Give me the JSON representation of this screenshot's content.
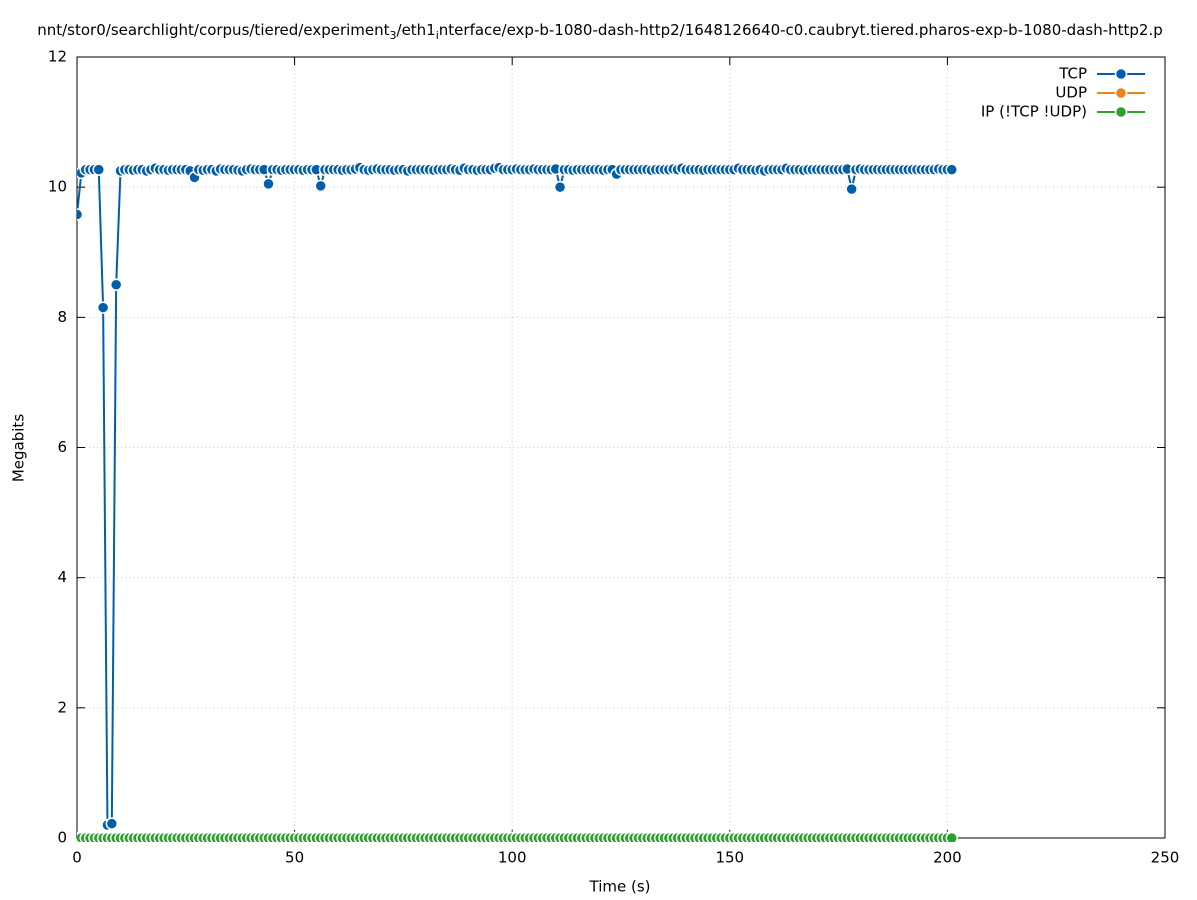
{
  "chart_data": {
    "type": "line",
    "title": [
      "nnt/stor0/searchlight/corpus/tiered/experiment",
      "3",
      "/eth1",
      "i",
      "nterface/exp-b-1080-dash-http2/1648126640-c0.caubryt.tiered.pharos-exp-b-1080-dash-http2.p"
    ],
    "xlabel": "Time (s)",
    "ylabel": "Megabits",
    "xlim": [
      0,
      250
    ],
    "xticks": [
      0,
      50,
      100,
      150,
      200,
      250
    ],
    "ylim": [
      0,
      12
    ],
    "yticks": [
      0,
      2,
      4,
      6,
      8,
      10,
      12
    ],
    "grid": true,
    "legend": "top-right",
    "x": [
      0,
      1,
      2,
      3,
      4,
      5,
      6,
      7,
      8,
      9,
      10,
      11,
      12,
      13,
      14,
      15,
      16,
      17,
      18,
      19,
      20,
      21,
      22,
      23,
      24,
      25,
      26,
      27,
      28,
      29,
      30,
      31,
      32,
      33,
      34,
      35,
      36,
      37,
      38,
      39,
      40,
      41,
      42,
      43,
      44,
      45,
      46,
      47,
      48,
      49,
      50,
      51,
      52,
      53,
      54,
      55,
      56,
      57,
      58,
      59,
      60,
      61,
      62,
      63,
      64,
      65,
      66,
      67,
      68,
      69,
      70,
      71,
      72,
      73,
      74,
      75,
      76,
      77,
      78,
      79,
      80,
      81,
      82,
      83,
      84,
      85,
      86,
      87,
      88,
      89,
      90,
      91,
      92,
      93,
      94,
      95,
      96,
      97,
      98,
      99,
      100,
      101,
      102,
      103,
      104,
      105,
      106,
      107,
      108,
      109,
      110,
      111,
      112,
      113,
      114,
      115,
      116,
      117,
      118,
      119,
      120,
      121,
      122,
      123,
      124,
      125,
      126,
      127,
      128,
      129,
      130,
      131,
      132,
      133,
      134,
      135,
      136,
      137,
      138,
      139,
      140,
      141,
      142,
      143,
      144,
      145,
      146,
      147,
      148,
      149,
      150,
      151,
      152,
      153,
      154,
      155,
      156,
      157,
      158,
      159,
      160,
      161,
      162,
      163,
      164,
      165,
      166,
      167,
      168,
      169,
      170,
      171,
      172,
      173,
      174,
      175,
      176,
      177,
      178,
      179,
      180,
      181,
      182,
      183,
      184,
      185,
      186,
      187,
      188,
      189,
      190,
      191,
      192,
      193,
      194,
      195,
      196,
      197,
      198,
      199,
      200,
      201
    ],
    "series": [
      {
        "name": "TCP",
        "color": "#005eaa",
        "values": [
          9.58,
          10.22,
          10.27,
          10.27,
          10.27,
          10.27,
          8.15,
          0.2,
          0.22,
          8.5,
          10.25,
          10.27,
          10.27,
          10.26,
          10.27,
          10.27,
          10.25,
          10.27,
          10.29,
          10.27,
          10.27,
          10.26,
          10.27,
          10.27,
          10.27,
          10.27,
          10.25,
          10.15,
          10.27,
          10.26,
          10.27,
          10.27,
          10.25,
          10.28,
          10.27,
          10.27,
          10.27,
          10.26,
          10.25,
          10.27,
          10.28,
          10.27,
          10.27,
          10.27,
          10.05,
          10.27,
          10.27,
          10.26,
          10.27,
          10.27,
          10.27,
          10.27,
          10.26,
          10.27,
          10.27,
          10.27,
          10.02,
          10.27,
          10.27,
          10.27,
          10.27,
          10.26,
          10.27,
          10.27,
          10.28,
          10.3,
          10.27,
          10.26,
          10.27,
          10.28,
          10.27,
          10.27,
          10.27,
          10.26,
          10.27,
          10.27,
          10.25,
          10.27,
          10.27,
          10.27,
          10.27,
          10.27,
          10.26,
          10.27,
          10.27,
          10.27,
          10.28,
          10.27,
          10.26,
          10.29,
          10.27,
          10.27,
          10.26,
          10.27,
          10.27,
          10.27,
          10.29,
          10.3,
          10.27,
          10.27,
          10.27,
          10.28,
          10.27,
          10.27,
          10.27,
          10.28,
          10.27,
          10.27,
          10.27,
          10.27,
          10.28,
          10.0,
          10.27,
          10.27,
          10.26,
          10.27,
          10.27,
          10.27,
          10.27,
          10.27,
          10.27,
          10.26,
          10.27,
          10.27,
          10.2,
          10.27,
          10.27,
          10.27,
          10.27,
          10.27,
          10.27,
          10.27,
          10.26,
          10.27,
          10.27,
          10.27,
          10.27,
          10.28,
          10.27,
          10.29,
          10.27,
          10.27,
          10.27,
          10.27,
          10.26,
          10.27,
          10.27,
          10.27,
          10.27,
          10.27,
          10.27,
          10.27,
          10.29,
          10.27,
          10.27,
          10.27,
          10.26,
          10.27,
          10.25,
          10.27,
          10.27,
          10.27,
          10.27,
          10.29,
          10.27,
          10.27,
          10.27,
          10.26,
          10.27,
          10.27,
          10.27,
          10.27,
          10.27,
          10.27,
          10.27,
          10.27,
          10.27,
          10.28,
          9.97,
          10.27,
          10.28,
          10.27,
          10.27,
          10.27,
          10.27,
          10.27,
          10.27,
          10.27,
          10.27,
          10.27,
          10.27,
          10.27,
          10.27,
          10.27,
          10.27,
          10.27,
          10.27,
          10.27,
          10.28,
          10.27,
          10.27,
          10.27
        ]
      },
      {
        "name": "UDP",
        "color": "#f0821e",
        "values": [
          0,
          0,
          0,
          0,
          0,
          0,
          0,
          0,
          0,
          0,
          0,
          0,
          0,
          0,
          0,
          0,
          0,
          0,
          0,
          0,
          0,
          0,
          0,
          0,
          0,
          0,
          0,
          0,
          0,
          0,
          0,
          0,
          0,
          0,
          0,
          0,
          0,
          0,
          0,
          0,
          0,
          0,
          0,
          0,
          0,
          0,
          0,
          0,
          0,
          0,
          0,
          0,
          0,
          0,
          0,
          0,
          0,
          0,
          0,
          0,
          0,
          0,
          0,
          0,
          0,
          0,
          0,
          0,
          0,
          0,
          0,
          0,
          0,
          0,
          0,
          0,
          0,
          0,
          0,
          0,
          0,
          0,
          0,
          0,
          0,
          0,
          0,
          0,
          0,
          0,
          0,
          0,
          0,
          0,
          0,
          0,
          0,
          0,
          0,
          0,
          0,
          0,
          0,
          0,
          0,
          0,
          0,
          0,
          0,
          0,
          0,
          0,
          0,
          0,
          0,
          0,
          0,
          0,
          0,
          0,
          0,
          0,
          0,
          0,
          0,
          0,
          0,
          0,
          0,
          0,
          0,
          0,
          0,
          0,
          0,
          0,
          0,
          0,
          0,
          0,
          0,
          0,
          0,
          0,
          0,
          0,
          0,
          0,
          0,
          0,
          0,
          0,
          0,
          0,
          0,
          0,
          0,
          0,
          0,
          0,
          0,
          0,
          0,
          0,
          0,
          0,
          0,
          0,
          0,
          0,
          0,
          0,
          0,
          0,
          0,
          0,
          0,
          0,
          0,
          0,
          0,
          0,
          0,
          0,
          0,
          0,
          0,
          0,
          0,
          0,
          0,
          0,
          0,
          0,
          0,
          0,
          0,
          0,
          0,
          0,
          0,
          0
        ]
      },
      {
        "name": "IP (!TCP  !UDP)",
        "color": "#2ca02c",
        "values": [
          0,
          0,
          0,
          0,
          0,
          0,
          0,
          0,
          0,
          0,
          0,
          0,
          0,
          0,
          0,
          0,
          0,
          0,
          0,
          0,
          0,
          0,
          0,
          0,
          0,
          0,
          0,
          0,
          0,
          0,
          0,
          0,
          0,
          0,
          0,
          0,
          0,
          0,
          0,
          0,
          0,
          0,
          0,
          0,
          0,
          0,
          0,
          0,
          0,
          0,
          0,
          0,
          0,
          0,
          0,
          0,
          0,
          0,
          0,
          0,
          0,
          0,
          0,
          0,
          0,
          0,
          0,
          0,
          0,
          0,
          0,
          0,
          0,
          0,
          0,
          0,
          0,
          0,
          0,
          0,
          0,
          0,
          0,
          0,
          0,
          0,
          0,
          0,
          0,
          0,
          0,
          0,
          0,
          0,
          0,
          0,
          0,
          0,
          0,
          0,
          0,
          0,
          0,
          0,
          0,
          0,
          0,
          0,
          0,
          0,
          0,
          0,
          0,
          0,
          0,
          0,
          0,
          0,
          0,
          0,
          0,
          0,
          0,
          0,
          0,
          0,
          0,
          0,
          0,
          0,
          0,
          0,
          0,
          0,
          0,
          0,
          0,
          0,
          0,
          0,
          0,
          0,
          0,
          0,
          0,
          0,
          0,
          0,
          0,
          0,
          0,
          0,
          0,
          0,
          0,
          0,
          0,
          0,
          0,
          0,
          0,
          0,
          0,
          0,
          0,
          0,
          0,
          0,
          0,
          0,
          0,
          0,
          0,
          0,
          0,
          0,
          0,
          0,
          0,
          0,
          0,
          0,
          0,
          0,
          0,
          0,
          0,
          0,
          0,
          0,
          0,
          0,
          0,
          0,
          0,
          0,
          0,
          0,
          0,
          0,
          0,
          0
        ]
      }
    ]
  }
}
